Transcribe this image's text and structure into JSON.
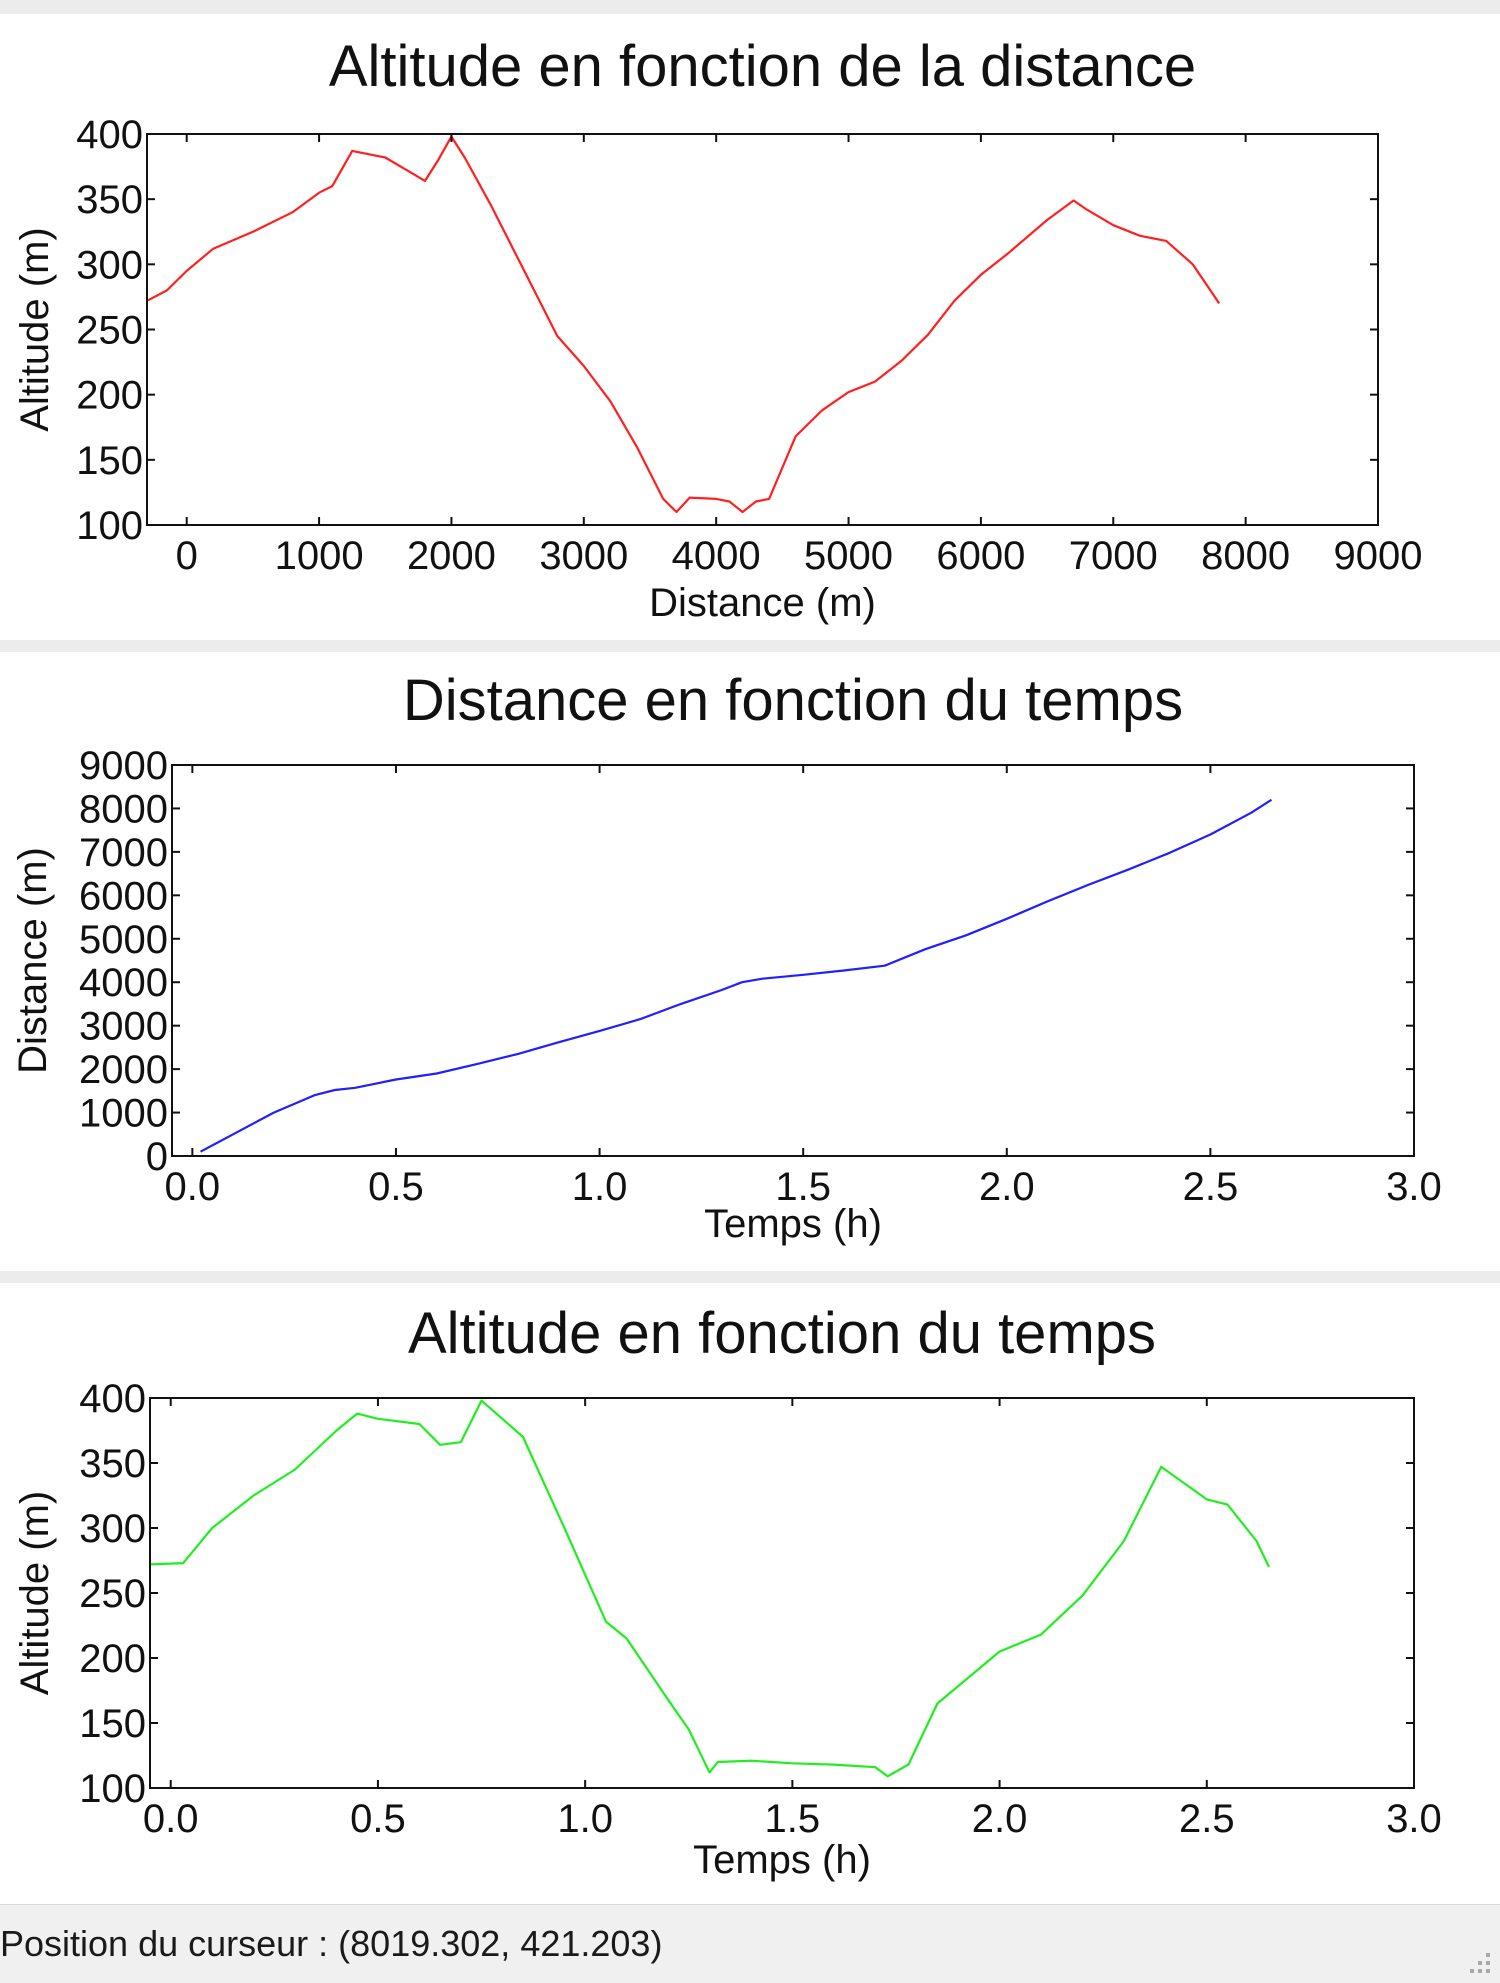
{
  "status_bar": {
    "cursor_position_text": "Position du curseur : (8019.302, 421.203)"
  },
  "chart_data": [
    {
      "type": "line",
      "title": "Altitude en fonction de la distance",
      "xlabel": "Distance (m)",
      "ylabel": "Altitude (m)",
      "xlim": [
        -300,
        9000
      ],
      "ylim": [
        100,
        400
      ],
      "xticks": [
        0,
        1000,
        2000,
        3000,
        4000,
        5000,
        6000,
        7000,
        8000,
        9000
      ],
      "xtick_labels": [
        "0",
        "1000",
        "2000",
        "3000",
        "4000",
        "5000",
        "6000",
        "7000",
        "8000",
        "9000"
      ],
      "yticks": [
        100,
        150,
        200,
        250,
        300,
        350,
        400
      ],
      "ytick_labels": [
        "100",
        "150",
        "200",
        "250",
        "300",
        "350",
        "400"
      ],
      "grid": false,
      "color": "#ff2020",
      "series": [
        {
          "x": [
            -300,
            -150,
            0,
            200,
            500,
            800,
            1000,
            1100,
            1250,
            1350,
            1500,
            1700,
            1800,
            1900,
            2000,
            2100,
            2300,
            2500,
            2800,
            3000,
            3200,
            3400,
            3600,
            3700,
            3800,
            4000,
            4100,
            4200,
            4300,
            4400,
            4600,
            4800,
            5000,
            5200,
            5400,
            5600,
            5800,
            6000,
            6200,
            6500,
            6700,
            6800,
            7000,
            7200,
            7400,
            7600,
            7800
          ],
          "y": [
            272,
            280,
            295,
            312,
            325,
            340,
            355,
            360,
            387,
            385,
            382,
            370,
            364,
            380,
            398,
            382,
            345,
            305,
            245,
            222,
            195,
            160,
            120,
            110,
            121,
            120,
            118,
            110,
            118,
            120,
            168,
            188,
            202,
            210,
            226,
            246,
            272,
            292,
            308,
            334,
            349,
            342,
            330,
            322,
            318,
            300,
            270
          ]
        }
      ]
    },
    {
      "type": "line",
      "title": "Distance en fonction du temps",
      "xlabel": "Temps (h)",
      "ylabel": "Distance (m)",
      "xlim": [
        -0.05,
        3.0
      ],
      "ylim": [
        0,
        9000
      ],
      "xticks": [
        0.0,
        0.5,
        1.0,
        1.5,
        2.0,
        2.5,
        3.0
      ],
      "xtick_labels": [
        "0.0",
        "0.5",
        "1.0",
        "1.5",
        "2.0",
        "2.5",
        "3.0"
      ],
      "yticks": [
        0,
        1000,
        2000,
        3000,
        4000,
        5000,
        6000,
        7000,
        8000,
        9000
      ],
      "ytick_labels": [
        "0",
        "1000",
        "2000",
        "3000",
        "4000",
        "5000",
        "6000",
        "7000",
        "8000",
        "9000"
      ],
      "grid": false,
      "color": "#2020ff",
      "series": [
        {
          "x": [
            0.02,
            0.1,
            0.2,
            0.3,
            0.35,
            0.4,
            0.5,
            0.6,
            0.7,
            0.8,
            0.9,
            1.0,
            1.1,
            1.2,
            1.3,
            1.35,
            1.4,
            1.5,
            1.6,
            1.7,
            1.8,
            1.9,
            2.0,
            2.1,
            2.2,
            2.3,
            2.4,
            2.5,
            2.6,
            2.65
          ],
          "y": [
            100,
            500,
            1000,
            1400,
            1520,
            1570,
            1760,
            1900,
            2120,
            2350,
            2620,
            2880,
            3150,
            3500,
            3820,
            4000,
            4080,
            4170,
            4270,
            4380,
            4760,
            5080,
            5460,
            5860,
            6240,
            6600,
            6980,
            7400,
            7900,
            8200
          ]
        }
      ]
    },
    {
      "type": "line",
      "title": "Altitude en fonction du temps",
      "xlabel": "Temps (h)",
      "ylabel": "Altitude (m)",
      "xlim": [
        -0.05,
        3.0
      ],
      "ylim": [
        100,
        400
      ],
      "xticks": [
        0.0,
        0.5,
        1.0,
        1.5,
        2.0,
        2.5,
        3.0
      ],
      "xtick_labels": [
        "0.0",
        "0.5",
        "1.0",
        "1.5",
        "2.0",
        "2.5",
        "3.0"
      ],
      "yticks": [
        100,
        150,
        200,
        250,
        300,
        350,
        400
      ],
      "ytick_labels": [
        "100",
        "150",
        "200",
        "250",
        "300",
        "350",
        "400"
      ],
      "grid": false,
      "color": "#20ee20",
      "series": [
        {
          "x": [
            -0.05,
            0.03,
            0.1,
            0.2,
            0.3,
            0.4,
            0.45,
            0.5,
            0.6,
            0.65,
            0.7,
            0.75,
            0.85,
            0.95,
            1.05,
            1.1,
            1.2,
            1.25,
            1.3,
            1.32,
            1.4,
            1.5,
            1.6,
            1.7,
            1.73,
            1.78,
            1.85,
            2.0,
            2.1,
            2.2,
            2.3,
            2.39,
            2.5,
            2.55,
            2.62,
            2.65
          ],
          "y": [
            272,
            273,
            300,
            325,
            345,
            375,
            388,
            384,
            380,
            364,
            366,
            398,
            370,
            300,
            228,
            215,
            168,
            145,
            112,
            120,
            121,
            119,
            118,
            116,
            109,
            118,
            165,
            205,
            218,
            248,
            290,
            347,
            322,
            318,
            290,
            270
          ]
        }
      ]
    }
  ]
}
